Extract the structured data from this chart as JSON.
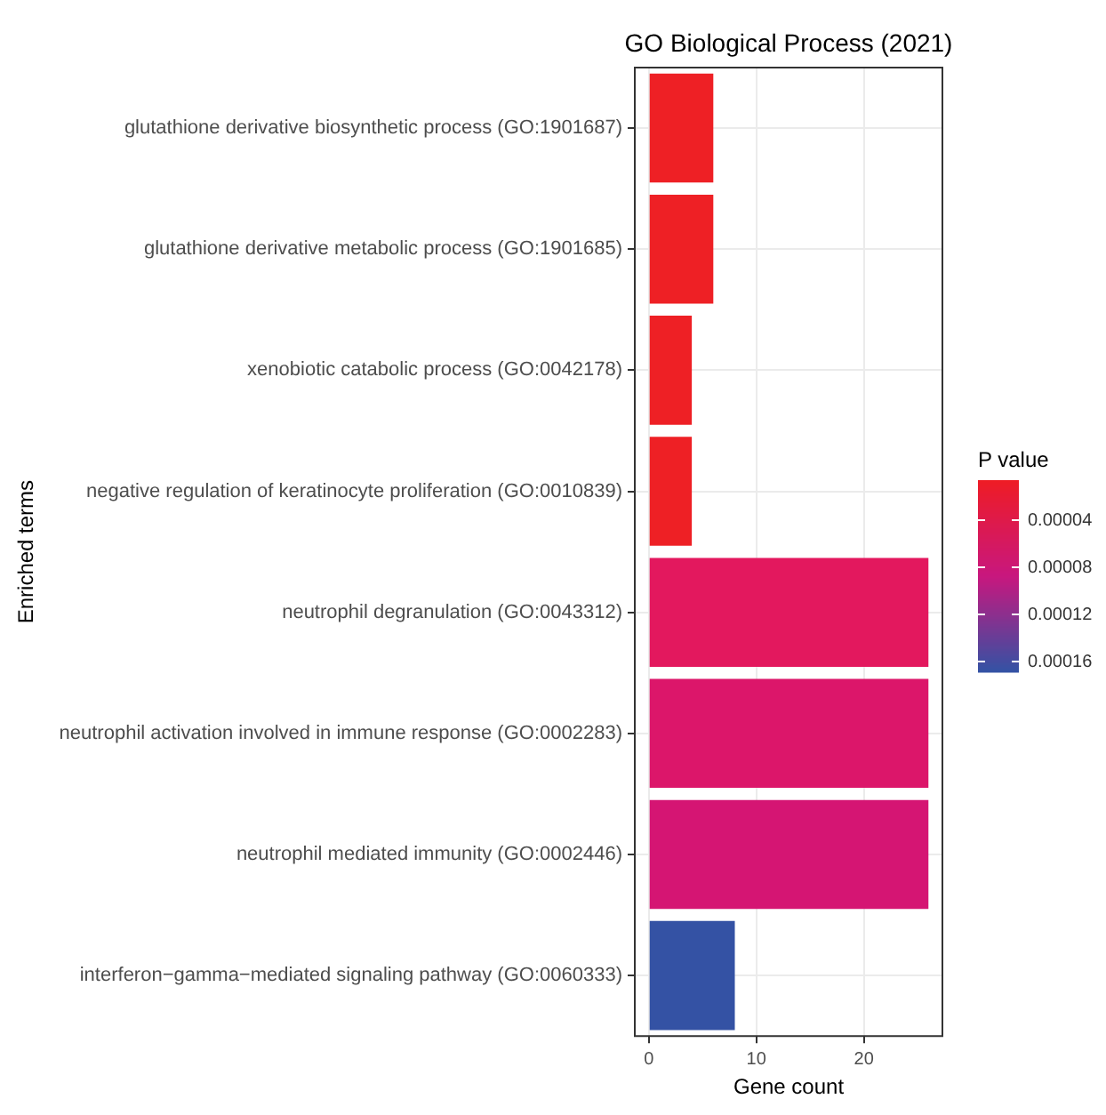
{
  "chart_data": {
    "type": "bar",
    "orientation": "horizontal",
    "title": "GO Biological Process (2021)",
    "xlabel": "Gene count",
    "ylabel": "Enriched terms",
    "clabel": "P value",
    "categories": [
      "glutathione derivative biosynthetic process (GO:1901687)",
      "glutathione derivative metabolic process (GO:1901685)",
      "xenobiotic catabolic process (GO:0042178)",
      "negative regulation of keratinocyte proliferation (GO:0010839)",
      "neutrophil degranulation (GO:0043312)",
      "neutrophil activation involved in immune response (GO:0002283)",
      "neutrophil mediated immunity (GO:0002446)",
      "interferon−gamma−mediated signaling pathway (GO:0060333)"
    ],
    "values": [
      6,
      6,
      4,
      4,
      26,
      26,
      26,
      8
    ],
    "colors": [
      "#ee2025",
      "#ee2025",
      "#ee2025",
      "#ee2025",
      "#e3185e",
      "#dc166a",
      "#d51573",
      "#3452a4"
    ],
    "xlim": [
      -1.3,
      27.3
    ],
    "xticks": [
      0,
      10,
      20
    ],
    "clim": [
      6e-06,
      0.000169
    ],
    "cticks": [
      {
        "value": 4e-05,
        "label": "0.00004"
      },
      {
        "value": 8e-05,
        "label": "0.00008"
      },
      {
        "value": 0.00012,
        "label": "0.00012"
      },
      {
        "value": 0.00016,
        "label": "0.00016"
      }
    ],
    "grid": true
  }
}
